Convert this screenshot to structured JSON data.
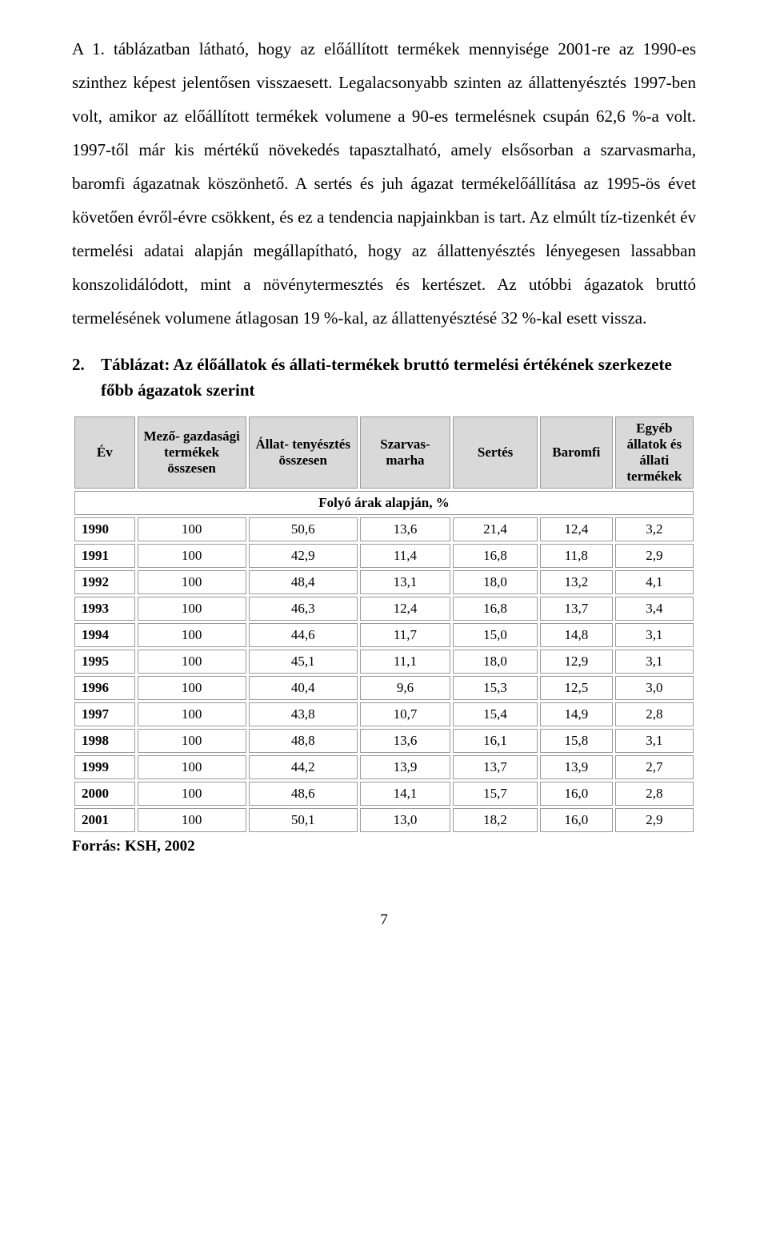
{
  "paragraph": {
    "text": "A 1. táblázatban látható, hogy az előállított termékek mennyisége 2001-re az 1990-es szinthez képest jelentősen visszaesett. Legalacsonyabb szinten az állattenyésztés 1997-ben volt, amikor az előállított termékek volumene a 90-es termelésnek csupán 62,6 %-a volt. 1997-től már kis mértékű növekedés tapasztalható, amely elsősorban a szarvasmarha, baromfi ágazatnak köszönhető. A sertés és juh ágazat termékelőállítása az 1995-ös évet követően évről-évre csökkent, és ez a tendencia napjainkban is tart. Az elmúlt tíz-tizenkét év termelési adatai alapján megállapítható, hogy az állattenyésztés lényegesen lassabban konszolidálódott, mint a növénytermesztés és kertészet. Az utóbbi ágazatok bruttó termelésének volumene átlagosan 19 %-kal, az állattenyésztésé 32 %-kal esett vissza."
  },
  "heading": {
    "number": "2.",
    "text": "Táblázat: Az élőállatok és állati-termékek bruttó termelési értékének szerkezete főbb ágazatok szerint"
  },
  "table": {
    "columns": [
      "Év",
      "Mező-\ngazdasági\ntermékek\nösszesen",
      "Állat-\ntenyésztés\nösszesen",
      "Szarvas-\nmarha",
      "Sertés",
      "Baromfi",
      "Egyéb\nállatok és\nállati\ntermékek"
    ],
    "subhead": "Folyó árak alapján, %",
    "rows": [
      [
        "1990",
        "100",
        "50,6",
        "13,6",
        "21,4",
        "12,4",
        "3,2"
      ],
      [
        "1991",
        "100",
        "42,9",
        "11,4",
        "16,8",
        "11,8",
        "2,9"
      ],
      [
        "1992",
        "100",
        "48,4",
        "13,1",
        "18,0",
        "13,2",
        "4,1"
      ],
      [
        "1993",
        "100",
        "46,3",
        "12,4",
        "16,8",
        "13,7",
        "3,4"
      ],
      [
        "1994",
        "100",
        "44,6",
        "11,7",
        "15,0",
        "14,8",
        "3,1"
      ],
      [
        "1995",
        "100",
        "45,1",
        "11,1",
        "18,0",
        "12,9",
        "3,1"
      ],
      [
        "1996",
        "100",
        "40,4",
        "9,6",
        "15,3",
        "12,5",
        "3,0"
      ],
      [
        "1997",
        "100",
        "43,8",
        "10,7",
        "15,4",
        "14,9",
        "2,8"
      ],
      [
        "1998",
        "100",
        "48,8",
        "13,6",
        "16,1",
        "15,8",
        "3,1"
      ],
      [
        "1999",
        "100",
        "44,2",
        "13,9",
        "13,7",
        "13,9",
        "2,7"
      ],
      [
        "2000",
        "100",
        "48,6",
        "14,1",
        "15,7",
        "16,0",
        "2,8"
      ],
      [
        "2001",
        "100",
        "50,1",
        "13,0",
        "18,2",
        "16,0",
        "2,9"
      ]
    ]
  },
  "source": "Forrás: KSH, 2002",
  "page_number": "7",
  "style": {
    "header_bg": "#d9d9d9",
    "border_color": "#9a9a9a",
    "font_family": "Times New Roman"
  }
}
